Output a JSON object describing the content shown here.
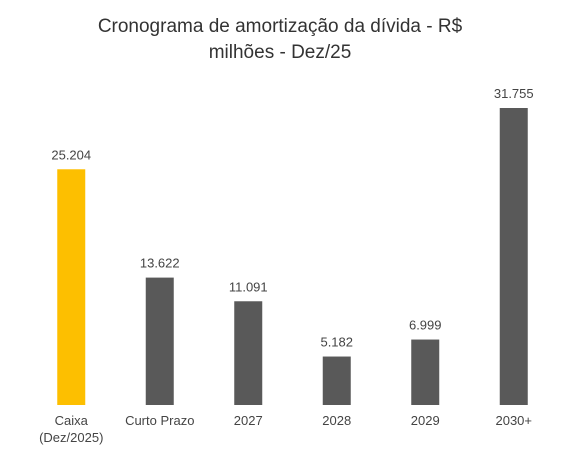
{
  "chart_data": {
    "type": "bar",
    "title": "Cronograma de amortização da dívida - R$ milhões - Dez/25",
    "categories": [
      "Caixa (Dez/2025)",
      "Curto Prazo",
      "2027",
      "2028",
      "2029",
      "2030+"
    ],
    "values": [
      25204,
      13622,
      11091,
      5182,
      6999,
      31755
    ],
    "value_labels": [
      "25.204",
      "13.622",
      "11.091",
      "5.182",
      "6.999",
      "31.755"
    ],
    "colors": [
      "#fdbf00",
      "#595959",
      "#595959",
      "#595959",
      "#595959",
      "#595959"
    ]
  }
}
